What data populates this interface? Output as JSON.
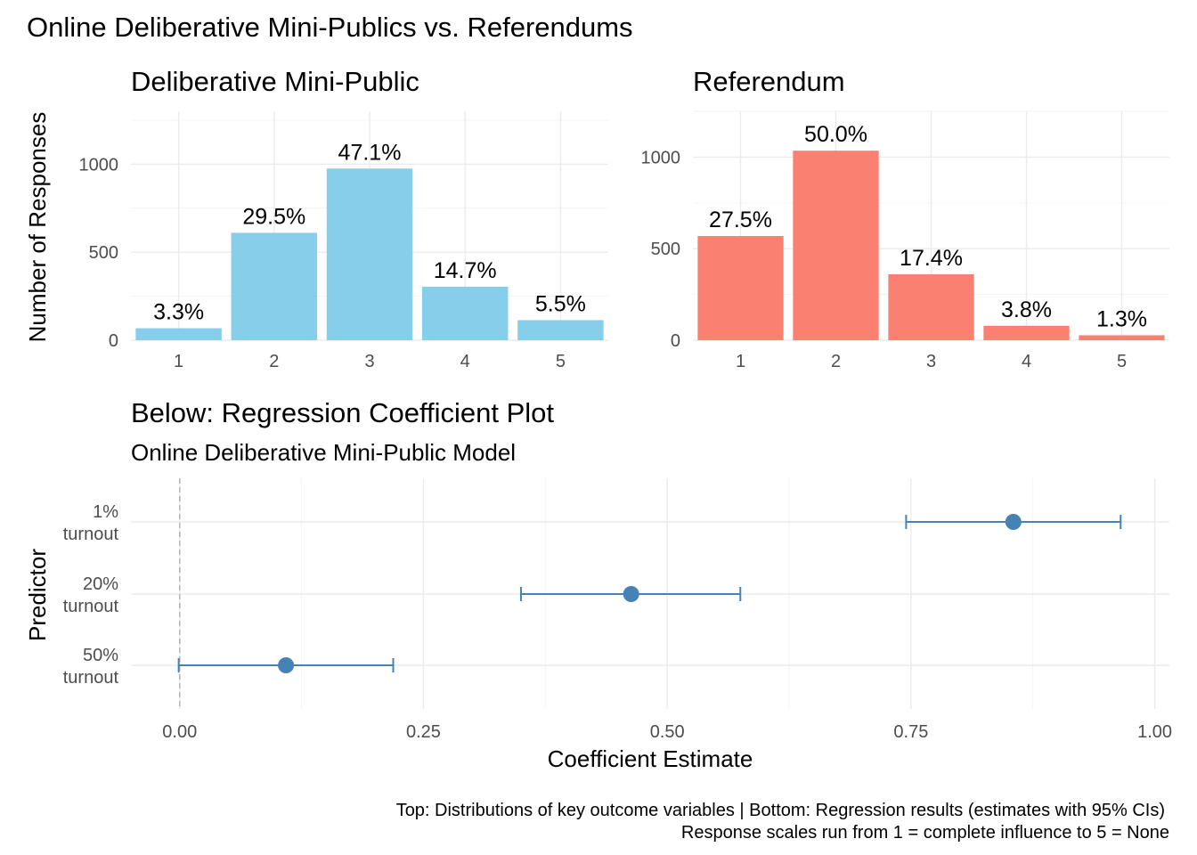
{
  "title": "Online Deliberative Mini-Publics vs. Referendums",
  "caption": {
    "line1": "Top: Distributions of key outcome variables | Bottom: Regression results (estimates with 95% CIs)",
    "line2": "Response scales run from 1 = complete influence to 5 = None"
  },
  "colors": {
    "dmp_bar": "#87CEEB",
    "ref_bar": "#FA8072",
    "coef": "#4682B4",
    "zero_line": "#b3b3b3"
  },
  "chart_data": [
    {
      "type": "bar",
      "title": "Deliberative Mini-Public",
      "xlabel": "",
      "ylabel": "Number of Responses",
      "categories": [
        "1",
        "2",
        "3",
        "4",
        "5"
      ],
      "values": [
        68,
        610,
        975,
        304,
        114
      ],
      "data_labels": [
        "3.3%",
        "29.5%",
        "47.1%",
        "14.7%",
        "5.5%"
      ],
      "ylim": [
        0,
        1300
      ],
      "yticks": [
        0,
        500,
        1000
      ],
      "ytick_labels": [
        "0",
        "500",
        "1000"
      ]
    },
    {
      "type": "bar",
      "title": "Referendum",
      "xlabel": "",
      "ylabel": "",
      "categories": [
        "1",
        "2",
        "3",
        "4",
        "5"
      ],
      "values": [
        569,
        1035,
        360,
        79,
        27
      ],
      "data_labels": [
        "27.5%",
        "50.0%",
        "17.4%",
        "3.8%",
        "1.3%"
      ],
      "ylim": [
        0,
        1250
      ],
      "yticks": [
        0,
        500,
        1000
      ],
      "ytick_labels": [
        "0",
        "500",
        "1000"
      ]
    },
    {
      "type": "scatter",
      "title": "Below: Regression Coefficient Plot",
      "subtitle": "Online Deliberative Mini-Public Model",
      "xlabel": "Coefficient Estimate",
      "ylabel": "Predictor",
      "predictors": [
        {
          "label_lines": [
            "1%",
            "turnout"
          ],
          "estimate": 0.855,
          "ci_low": 0.745,
          "ci_high": 0.965
        },
        {
          "label_lines": [
            "20%",
            "turnout"
          ],
          "estimate": 0.463,
          "ci_low": 0.35,
          "ci_high": 0.575
        },
        {
          "label_lines": [
            "50%",
            "turnout"
          ],
          "estimate": 0.109,
          "ci_low": -0.001,
          "ci_high": 0.219
        }
      ],
      "xlim": [
        -0.05,
        1.015
      ],
      "xticks": [
        0,
        0.25,
        0.5,
        0.75,
        1
      ],
      "xtick_labels": [
        "0.00",
        "0.25",
        "0.50",
        "0.75",
        "1.00"
      ],
      "reference_line": 0
    }
  ]
}
